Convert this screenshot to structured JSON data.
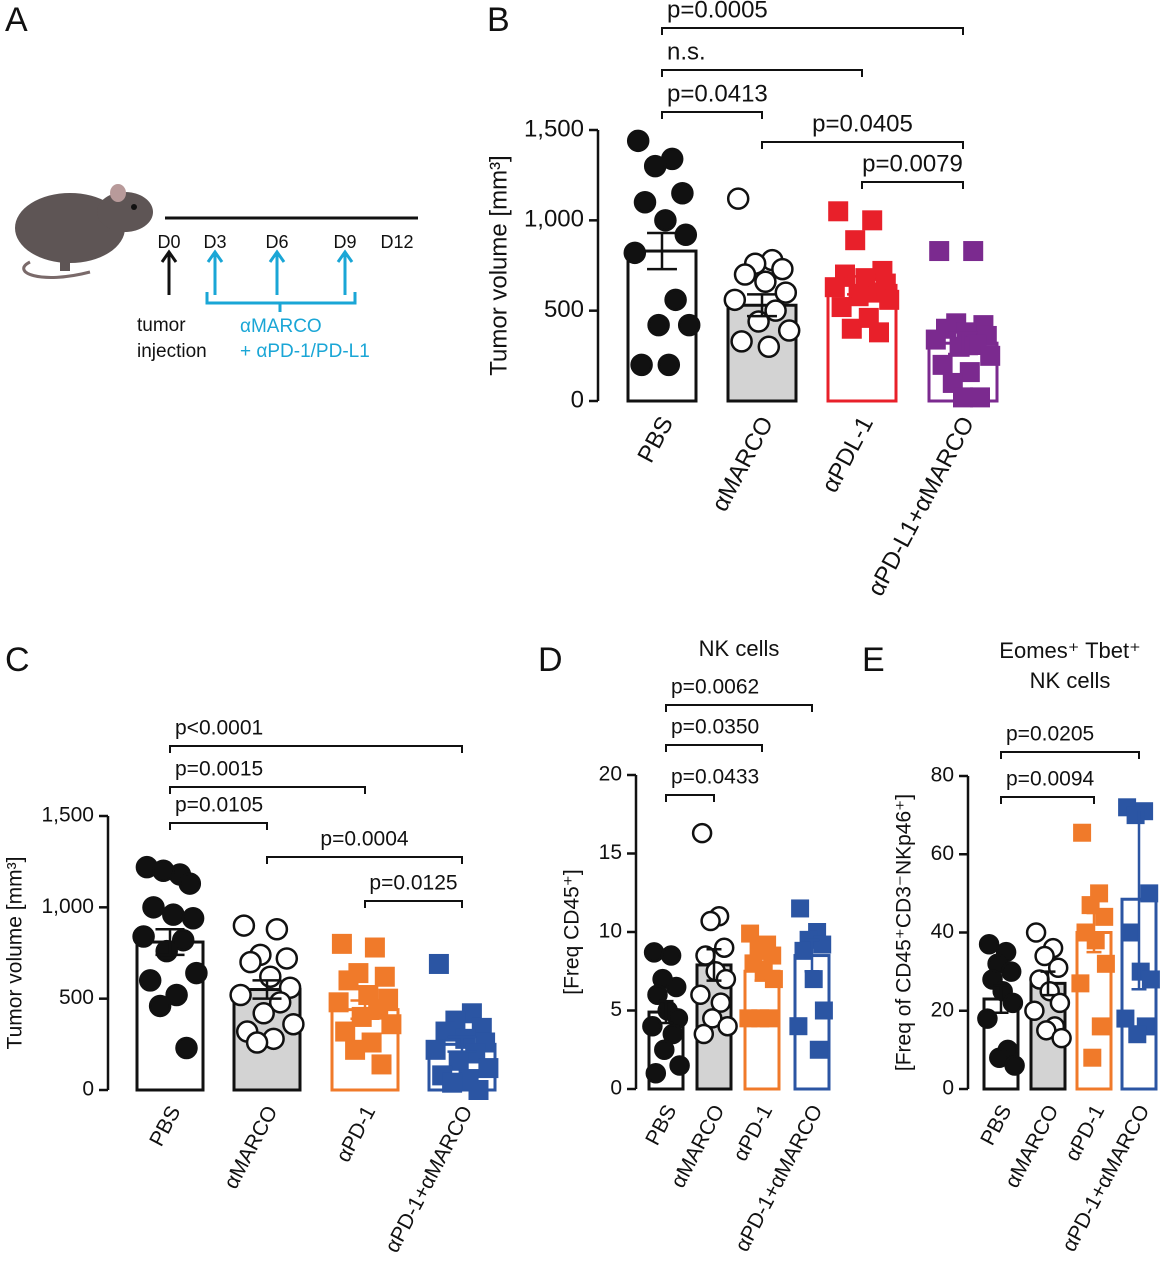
{
  "diagram": {
    "panel": "A",
    "timeline": [
      "D0",
      "D3",
      "D6",
      "D9",
      "D12"
    ],
    "start_label": [
      "tumor",
      "injection"
    ],
    "treatment": [
      "αMARCO",
      "+ αPD-1/PD-L1"
    ]
  },
  "chart_data": [
    {
      "type": "bar",
      "panel": "B",
      "ylabel": "Tumor volume [mm³]",
      "categories": [
        "PBS",
        "αMARCO",
        "αPDL-1",
        "αPD-L1+αMARCO"
      ],
      "values": [
        830,
        530,
        640,
        320
      ],
      "errors": [
        100,
        60,
        50,
        60
      ],
      "points": [
        [
          1440,
          1340,
          1300,
          1150,
          1100,
          1000,
          920,
          820,
          560,
          420,
          420,
          200,
          200
        ],
        [
          1120,
          780,
          760,
          730,
          700,
          660,
          600,
          560,
          500,
          440,
          390,
          330,
          300
        ],
        [
          1050,
          1000,
          890,
          720,
          700,
          680,
          650,
          630,
          600,
          580,
          560,
          520,
          460,
          400,
          380
        ],
        [
          830,
          830,
          430,
          420,
          400,
          380,
          360,
          340,
          310,
          300,
          250,
          200,
          160,
          100,
          20,
          20
        ]
      ],
      "colors": [
        "#111111",
        "#111111",
        "#e8202a",
        "#7b2a8f"
      ],
      "bar_fills": [
        "#ffffff",
        "#d3d3d3",
        "#ffffff",
        "#ffffff"
      ],
      "markers": [
        "filled-circle",
        "open-circle",
        "square",
        "square"
      ],
      "ylim": [
        0,
        1500
      ],
      "yticks": [
        0,
        500,
        {
          "value": 1000,
          "label": "1,000"
        },
        {
          "value": 1500,
          "label": "1,500"
        }
      ],
      "comparisons": [
        {
          "from": 0,
          "to": 3,
          "label": "p=0.0005"
        },
        {
          "from": 0,
          "to": 2,
          "label": "n.s."
        },
        {
          "from": 0,
          "to": 1,
          "label": "p=0.0413"
        },
        {
          "from": 1,
          "to": 3,
          "label": "p=0.0405"
        },
        {
          "from": 2,
          "to": 3,
          "label": "p=0.0079"
        }
      ]
    },
    {
      "type": "bar",
      "panel": "C",
      "ylabel": "Tumor volume [mm³]",
      "categories": [
        "PBS",
        "αMARCO",
        "αPD-1",
        "αPD-1+αMARCO"
      ],
      "values": [
        810,
        550,
        440,
        250
      ],
      "errors": [
        70,
        50,
        50,
        40
      ],
      "points": [
        [
          1220,
          1180,
          1200,
          1130,
          1000,
          960,
          940,
          840,
          820,
          760,
          640,
          600,
          520,
          460,
          230
        ],
        [
          900,
          880,
          740,
          720,
          700,
          620,
          560,
          520,
          480,
          420,
          360,
          320,
          280,
          260
        ],
        [
          800,
          780,
          640,
          620,
          600,
          520,
          500,
          480,
          440,
          400,
          360,
          320,
          260,
          220,
          140
        ],
        [
          690,
          420,
          380,
          340,
          320,
          280,
          260,
          220,
          200,
          160,
          120,
          80,
          60,
          40,
          0
        ]
      ],
      "colors": [
        "#111111",
        "#111111",
        "#f07a2a",
        "#2b55a3"
      ],
      "bar_fills": [
        "#ffffff",
        "#d3d3d3",
        "#ffffff",
        "#ffffff"
      ],
      "markers": [
        "filled-circle",
        "open-circle",
        "square",
        "square"
      ],
      "ylim": [
        0,
        1500
      ],
      "yticks": [
        0,
        500,
        {
          "value": 1000,
          "label": "1,000"
        },
        {
          "value": 1500,
          "label": "1,500"
        }
      ],
      "comparisons": [
        {
          "from": 0,
          "to": 3,
          "label": "p<0.0001"
        },
        {
          "from": 0,
          "to": 2,
          "label": "p=0.0015"
        },
        {
          "from": 0,
          "to": 1,
          "label": "p=0.0105"
        },
        {
          "from": 1,
          "to": 3,
          "label": "p=0.0004"
        },
        {
          "from": 2,
          "to": 3,
          "label": "p=0.0125"
        }
      ]
    },
    {
      "type": "bar",
      "panel": "D",
      "title": [
        "NK cells"
      ],
      "ylabel": "[Freq CD45⁺]",
      "categories": [
        "PBS",
        "αMARCO",
        "αPD-1",
        "αPD-1+αMARCO"
      ],
      "values": [
        4.9,
        7.9,
        7.5,
        8.5
      ],
      "errors": [
        0.7,
        1,
        0.6,
        1
      ],
      "points": [
        [
          8.7,
          8.5,
          7,
          6.5,
          6,
          5,
          4.5,
          4,
          3.5,
          2.5,
          1.5,
          1
        ],
        [
          16.3,
          11,
          10.7,
          9,
          8.5,
          7.5,
          7,
          6,
          5.5,
          4.5,
          4,
          3.5
        ],
        [
          9.9,
          9.2,
          8.8,
          8.5,
          8,
          7.5,
          7,
          4.5,
          4.5,
          4.5
        ],
        [
          11.5,
          10,
          9.5,
          9.2,
          8.8,
          7,
          5,
          4,
          2.5
        ]
      ],
      "colors": [
        "#111111",
        "#111111",
        "#f07a2a",
        "#2b55a3"
      ],
      "bar_fills": [
        "#ffffff",
        "#d3d3d3",
        "#ffffff",
        "#ffffff"
      ],
      "markers": [
        "filled-circle",
        "open-circle",
        "square",
        "square"
      ],
      "ylim": [
        0,
        20
      ],
      "yticks": [
        0,
        5,
        10,
        15,
        20
      ],
      "comparisons": [
        {
          "from": 0,
          "to": 3,
          "label": "p=0.0062"
        },
        {
          "from": 0,
          "to": 2,
          "label": "p=0.0350"
        },
        {
          "from": 0,
          "to": 1,
          "label": "p=0.0433"
        }
      ]
    },
    {
      "type": "bar",
      "panel": "E",
      "title": [
        "Eomes⁺ Tbet⁺",
        "NK cells"
      ],
      "ylabel": "[Freq of CD45⁺CD3⁻NKp46⁺]",
      "categories": [
        "PBS",
        "αMARCO",
        "αPD-1",
        "αPD-1+αMARCO"
      ],
      "values": [
        23,
        27,
        40,
        48.5
      ],
      "errors": [
        3.5,
        3,
        5,
        23
      ],
      "points": [
        [
          37,
          35,
          32,
          30,
          28,
          25,
          22,
          18,
          10,
          8,
          6
        ],
        [
          40,
          36,
          34,
          31,
          28,
          25,
          22,
          20,
          16,
          15,
          13
        ],
        [
          65.5,
          50,
          47,
          44,
          40,
          38,
          32,
          27,
          16,
          8
        ],
        [
          72,
          71,
          70,
          50,
          40,
          30,
          28,
          18,
          16,
          14
        ]
      ],
      "colors": [
        "#111111",
        "#111111",
        "#f07a2a",
        "#2b55a3"
      ],
      "bar_fills": [
        "#ffffff",
        "#d3d3d3",
        "#ffffff",
        "#ffffff"
      ],
      "markers": [
        "filled-circle",
        "open-circle",
        "square",
        "square"
      ],
      "ylim": [
        0,
        80
      ],
      "yticks": [
        0,
        20,
        40,
        60,
        80
      ],
      "comparisons": [
        {
          "from": 0,
          "to": 3,
          "label": "p=0.0205"
        },
        {
          "from": 0,
          "to": 2,
          "label": "p=0.0094"
        }
      ]
    }
  ]
}
